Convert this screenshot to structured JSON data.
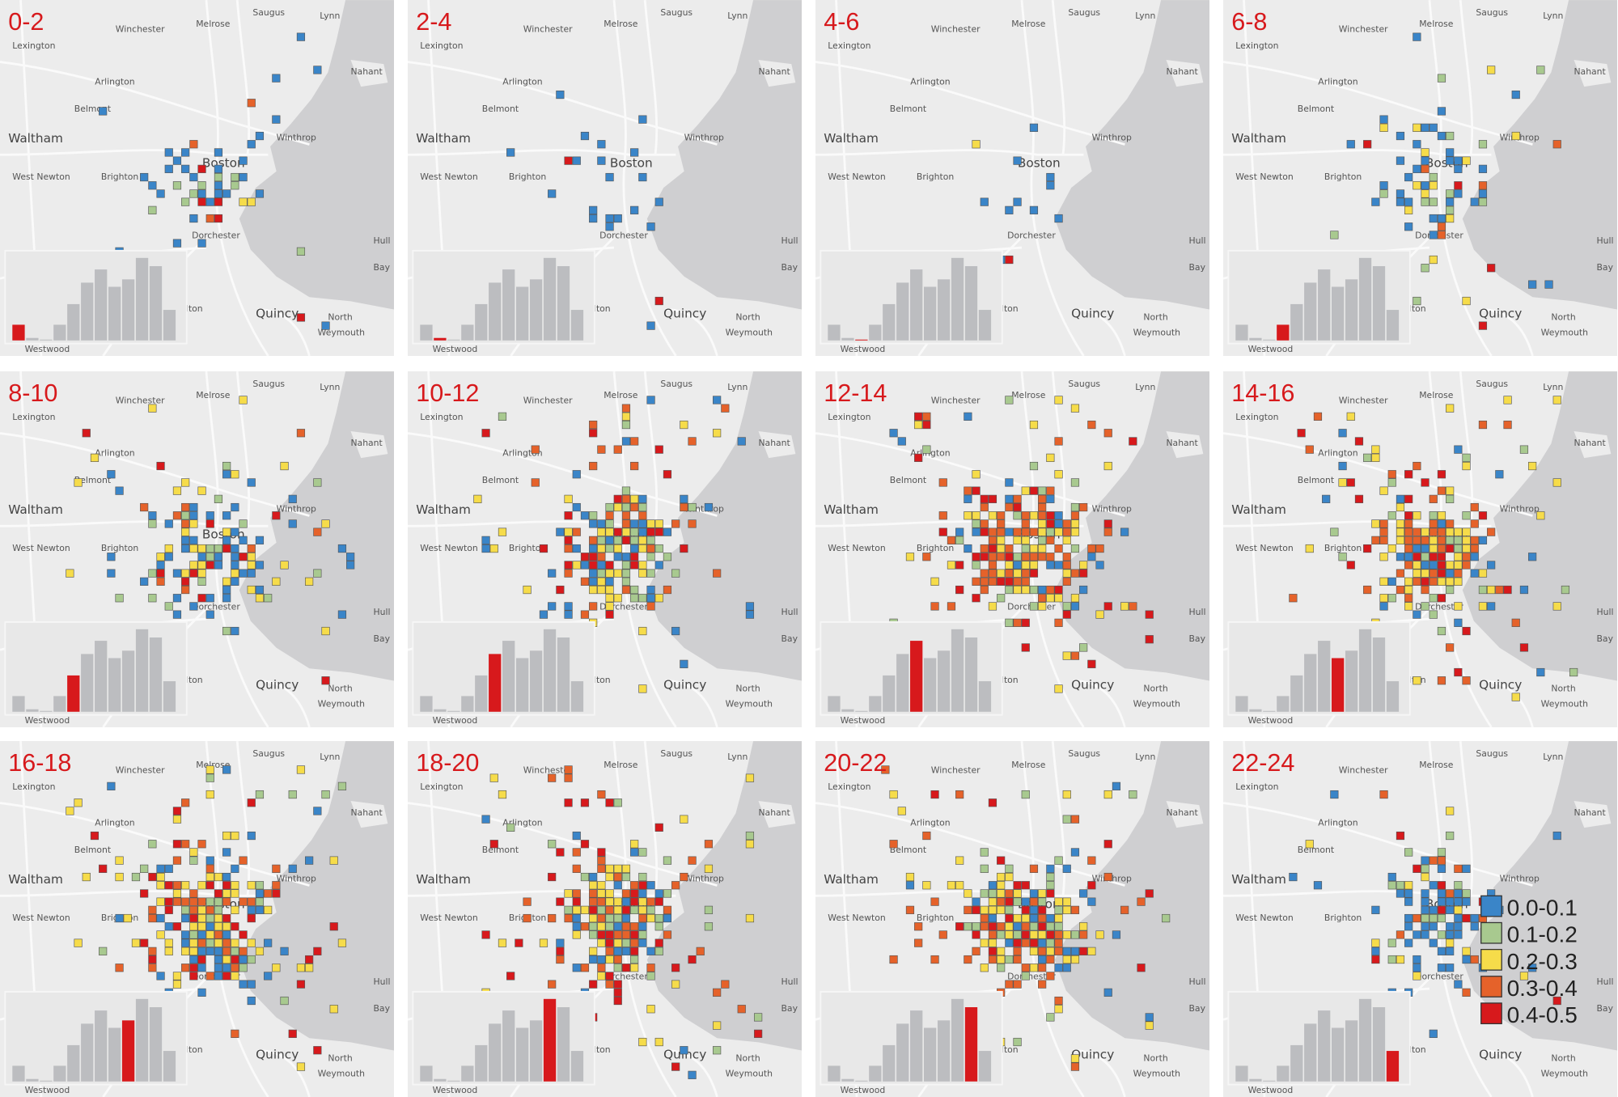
{
  "panels": [
    {
      "label": "0-2"
    },
    {
      "label": "2-4"
    },
    {
      "label": "4-6"
    },
    {
      "label": "6-8"
    },
    {
      "label": "8-10"
    },
    {
      "label": "10-12"
    },
    {
      "label": "12-14"
    },
    {
      "label": "14-16"
    },
    {
      "label": "16-18"
    },
    {
      "label": "18-20"
    },
    {
      "label": "20-22"
    },
    {
      "label": "22-24"
    }
  ],
  "places": [
    "Winchester",
    "Melrose",
    "Saugus",
    "Lynn",
    "Lexington",
    "Arlington",
    "Nahant",
    "Belmont",
    "Waltham",
    "Winthrop",
    "Boston",
    "West Newton",
    "Brighton",
    "Dorchester",
    "Hull",
    "Bay",
    "Quincy",
    "North",
    "Weymouth",
    "ilton",
    "Westwood"
  ],
  "histogram": {
    "relative_values": [
      19,
      3,
      1,
      19,
      44,
      70,
      86,
      65,
      74,
      100,
      90,
      37
    ],
    "bar_color": "#bcbdc0",
    "highlight_color": "#d7191c"
  },
  "legend": [
    {
      "label": "0.0-0.1",
      "color": "#3a85c8"
    },
    {
      "label": "0.1-0.2",
      "color": "#a8c98f"
    },
    {
      "label": "0.2-0.3",
      "color": "#f6dc4a"
    },
    {
      "label": "0.3-0.4",
      "color": "#e5622a"
    },
    {
      "label": "0.4-0.5",
      "color": "#d7191c"
    }
  ],
  "colors": {
    "land": "#ececec",
    "water": "#cfcfd1",
    "road": "#fafafa"
  }
}
